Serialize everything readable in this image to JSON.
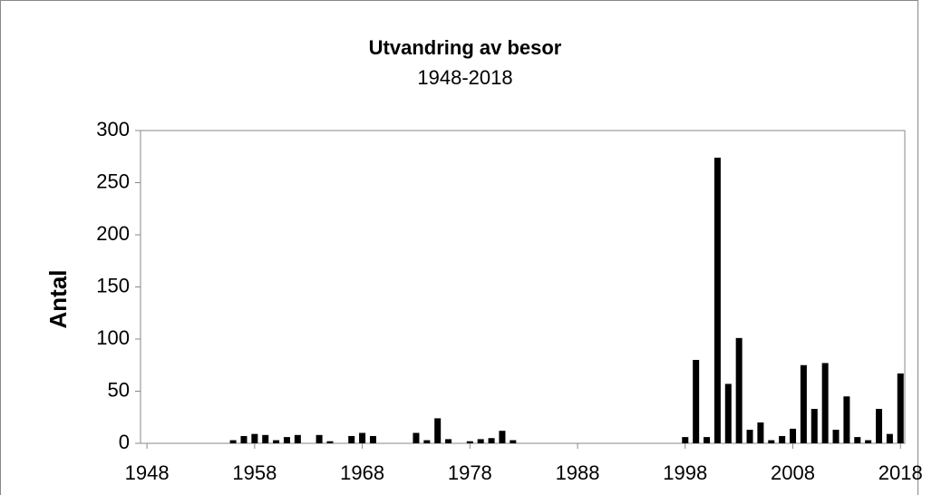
{
  "chart_data": {
    "type": "bar",
    "title": "Utvandring av besor",
    "subtitle": "1948-2018",
    "y_label": "Antal",
    "x": [
      1956,
      1957,
      1958,
      1959,
      1960,
      1961,
      1962,
      1964,
      1965,
      1967,
      1968,
      1969,
      1973,
      1974,
      1975,
      1976,
      1978,
      1979,
      1980,
      1981,
      1982,
      1998,
      1999,
      2000,
      2001,
      2002,
      2003,
      2004,
      2005,
      2006,
      2007,
      2008,
      2009,
      2010,
      2011,
      2012,
      2013,
      2014,
      2015,
      2016,
      2017,
      2018
    ],
    "values": [
      3,
      7,
      9,
      8,
      3,
      6,
      8,
      8,
      2,
      7,
      10,
      7,
      10,
      3,
      24,
      4,
      2,
      4,
      5,
      12,
      3,
      6,
      80,
      6,
      274,
      57,
      101,
      13,
      20,
      3,
      7,
      14,
      75,
      33,
      77,
      13,
      45,
      6,
      3,
      33,
      9,
      67
    ],
    "color": "#000000",
    "xlim": [
      1947.4,
      2018.4
    ],
    "xticks": [
      1948,
      1958,
      1968,
      1978,
      1988,
      1998,
      2008,
      2018
    ],
    "ylim": [
      0,
      300
    ],
    "yticks": [
      0,
      50,
      100,
      150,
      200,
      250,
      300
    ],
    "grid": false
  }
}
